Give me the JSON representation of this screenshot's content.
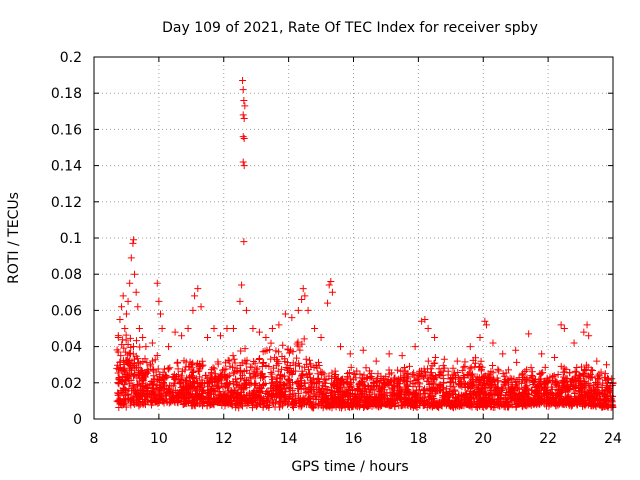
{
  "chart_data": {
    "type": "scatter",
    "title": "Day 109 of 2021, Rate Of TEC Index for receiver spby",
    "xlabel": "GPS time / hours",
    "ylabel": "ROTI / TECUs",
    "xlim": [
      8,
      24
    ],
    "ylim": [
      0,
      0.2
    ],
    "xticks": [
      "8",
      "10",
      "12",
      "14",
      "16",
      "18",
      "20",
      "22",
      "24"
    ],
    "yticks": [
      "0",
      "0.02",
      "0.04",
      "0.06",
      "0.08",
      "0.1",
      "0.12",
      "0.14",
      "0.16",
      "0.18",
      "0.2"
    ],
    "grid": true,
    "marker": "plus",
    "color": "#ff0000",
    "series": [
      {
        "name": "ROTI",
        "points": [
          [
            8.7,
            0.028
          ],
          [
            8.75,
            0.045
          ],
          [
            8.8,
            0.055
          ],
          [
            8.85,
            0.062
          ],
          [
            8.9,
            0.068
          ],
          [
            8.95,
            0.05
          ],
          [
            9.0,
            0.058
          ],
          [
            9.05,
            0.065
          ],
          [
            9.1,
            0.075
          ],
          [
            9.15,
            0.089
          ],
          [
            9.2,
            0.097
          ],
          [
            9.22,
            0.099
          ],
          [
            9.25,
            0.08
          ],
          [
            9.3,
            0.07
          ],
          [
            9.35,
            0.062
          ],
          [
            9.4,
            0.05
          ],
          [
            9.5,
            0.045
          ],
          [
            9.6,
            0.04
          ],
          [
            9.8,
            0.042
          ],
          [
            9.95,
            0.075
          ],
          [
            10.0,
            0.065
          ],
          [
            10.05,
            0.058
          ],
          [
            10.1,
            0.05
          ],
          [
            10.3,
            0.04
          ],
          [
            10.5,
            0.048
          ],
          [
            10.7,
            0.046
          ],
          [
            10.9,
            0.05
          ],
          [
            11.05,
            0.06
          ],
          [
            11.1,
            0.068
          ],
          [
            11.2,
            0.072
          ],
          [
            11.3,
            0.062
          ],
          [
            11.5,
            0.045
          ],
          [
            11.7,
            0.05
          ],
          [
            11.9,
            0.046
          ],
          [
            12.1,
            0.05
          ],
          [
            12.3,
            0.05
          ],
          [
            12.5,
            0.065
          ],
          [
            12.55,
            0.074
          ],
          [
            12.58,
            0.187
          ],
          [
            12.6,
            0.182
          ],
          [
            12.62,
            0.176
          ],
          [
            12.65,
            0.173
          ],
          [
            12.6,
            0.168
          ],
          [
            12.63,
            0.166
          ],
          [
            12.6,
            0.156
          ],
          [
            12.63,
            0.155
          ],
          [
            12.6,
            0.142
          ],
          [
            12.63,
            0.14
          ],
          [
            12.62,
            0.098
          ],
          [
            12.7,
            0.06
          ],
          [
            12.9,
            0.05
          ],
          [
            13.1,
            0.048
          ],
          [
            13.3,
            0.045
          ],
          [
            13.5,
            0.05
          ],
          [
            13.7,
            0.052
          ],
          [
            13.9,
            0.058
          ],
          [
            14.1,
            0.056
          ],
          [
            14.3,
            0.06
          ],
          [
            14.4,
            0.066
          ],
          [
            14.45,
            0.072
          ],
          [
            14.5,
            0.068
          ],
          [
            14.6,
            0.06
          ],
          [
            14.8,
            0.05
          ],
          [
            15.0,
            0.045
          ],
          [
            15.2,
            0.064
          ],
          [
            15.25,
            0.074
          ],
          [
            15.3,
            0.076
          ],
          [
            15.35,
            0.07
          ],
          [
            15.6,
            0.04
          ],
          [
            15.9,
            0.036
          ],
          [
            16.3,
            0.038
          ],
          [
            16.7,
            0.032
          ],
          [
            17.1,
            0.036
          ],
          [
            17.5,
            0.035
          ],
          [
            17.9,
            0.04
          ],
          [
            18.1,
            0.054
          ],
          [
            18.2,
            0.055
          ],
          [
            18.3,
            0.05
          ],
          [
            18.5,
            0.045
          ],
          [
            18.8,
            0.033
          ],
          [
            19.2,
            0.032
          ],
          [
            19.6,
            0.04
          ],
          [
            19.9,
            0.045
          ],
          [
            20.05,
            0.054
          ],
          [
            20.1,
            0.052
          ],
          [
            20.3,
            0.042
          ],
          [
            20.6,
            0.036
          ],
          [
            21.0,
            0.038
          ],
          [
            21.4,
            0.047
          ],
          [
            21.8,
            0.036
          ],
          [
            22.2,
            0.034
          ],
          [
            22.4,
            0.052
          ],
          [
            22.5,
            0.05
          ],
          [
            22.8,
            0.042
          ],
          [
            23.1,
            0.048
          ],
          [
            23.2,
            0.052
          ],
          [
            23.25,
            0.046
          ],
          [
            23.5,
            0.032
          ],
          [
            23.8,
            0.03
          ],
          [
            24.0,
            0.02
          ]
        ],
        "band": {
          "x": [
            8.7,
            9.0,
            9.5,
            10,
            10.5,
            11,
            11.5,
            12,
            12.5,
            13,
            13.5,
            14,
            14.5,
            15,
            15.5,
            16,
            16.5,
            17,
            17.5,
            18,
            18.5,
            19,
            19.5,
            20,
            20.5,
            21,
            21.5,
            22,
            22.5,
            23,
            23.5,
            24
          ],
          "low": [
            0.005,
            0.006,
            0.007,
            0.008,
            0.008,
            0.007,
            0.007,
            0.007,
            0.006,
            0.006,
            0.006,
            0.006,
            0.006,
            0.006,
            0.006,
            0.006,
            0.006,
            0.007,
            0.006,
            0.006,
            0.006,
            0.006,
            0.006,
            0.006,
            0.006,
            0.006,
            0.007,
            0.007,
            0.007,
            0.007,
            0.006,
            0.006
          ],
          "high": [
            0.045,
            0.05,
            0.038,
            0.035,
            0.032,
            0.035,
            0.033,
            0.035,
            0.038,
            0.04,
            0.042,
            0.045,
            0.045,
            0.035,
            0.03,
            0.028,
            0.028,
            0.028,
            0.03,
            0.035,
            0.033,
            0.03,
            0.032,
            0.035,
            0.03,
            0.03,
            0.03,
            0.028,
            0.03,
            0.033,
            0.03,
            0.025
          ],
          "count": 3200
        }
      }
    ]
  }
}
